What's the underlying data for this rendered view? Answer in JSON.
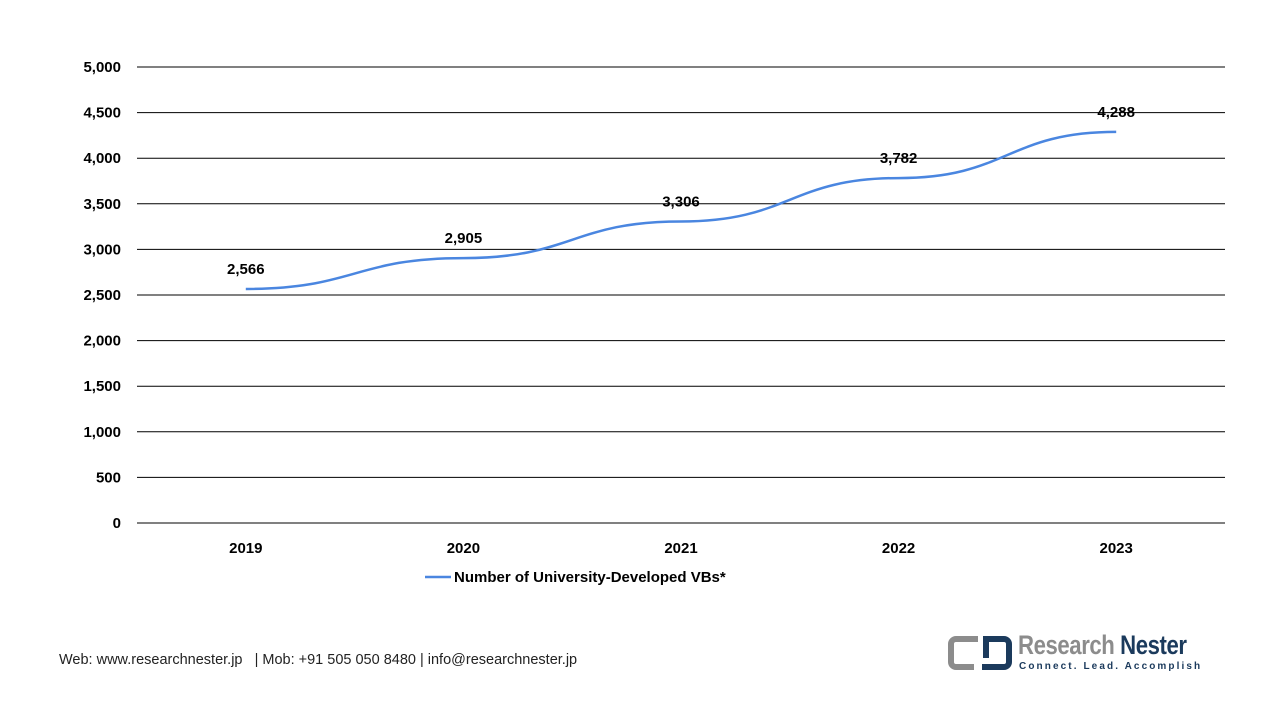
{
  "chart_data": {
    "type": "line",
    "title": "",
    "xlabel": "",
    "ylabel": "",
    "categories": [
      "2019",
      "2020",
      "2021",
      "2022",
      "2023"
    ],
    "series": [
      {
        "name": "Number of University-Developed VBs*",
        "values": [
          2566,
          2905,
          3306,
          3782,
          4288
        ],
        "labels": [
          "2,566",
          "2,905",
          "3,306",
          "3,782",
          "4,288"
        ],
        "color": "#4a86e0"
      }
    ],
    "ylim": [
      0,
      5000
    ],
    "yticks": [
      0,
      500,
      1000,
      1500,
      2000,
      2500,
      3000,
      3500,
      4000,
      4500,
      5000
    ],
    "ytick_labels": [
      "0",
      "500",
      "1,000",
      "1,500",
      "2,000",
      "2,500",
      "3,000",
      "3,500",
      "4,000",
      "4,500",
      "5,000"
    ],
    "grid": true,
    "legend": "bottom"
  },
  "footer": {
    "text": "Web: www.researchnester.jp   | Mob: +91 505 050 8480 | info@researchnester.jp"
  },
  "logo": {
    "name_part1": "Research ",
    "name_part2": "Nester",
    "tagline": "Connect. Lead. Accomplish"
  }
}
